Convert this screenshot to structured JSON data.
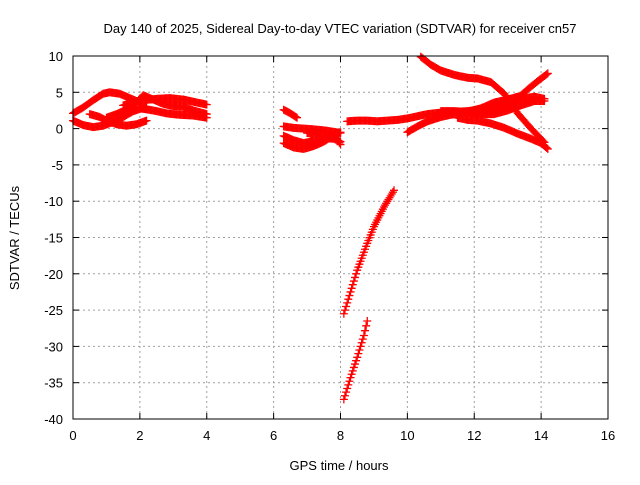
{
  "chart_data": {
    "type": "scatter",
    "title": "Day 140 of 2025, Sidereal Day-to-day VTEC variation (SDTVAR) for receiver cn57",
    "xlabel": "GPS time / hours",
    "ylabel": "SDTVAR / TECUs",
    "xlim": [
      0,
      16
    ],
    "ylim": [
      -40,
      10
    ],
    "xticks": [
      0,
      2,
      4,
      6,
      8,
      10,
      12,
      14,
      16
    ],
    "yticks": [
      -40,
      -35,
      -30,
      -25,
      -20,
      -15,
      -10,
      -5,
      0,
      5,
      10
    ],
    "grid": true,
    "marker": "plus",
    "color": "#ff0000",
    "series": [
      {
        "x": [
          0.0,
          0.3,
          0.6,
          0.9,
          1.1,
          1.4,
          1.7,
          2.0
        ],
        "y": [
          2.1,
          2.9,
          3.9,
          4.8,
          5.0,
          4.8,
          4.2,
          3.6
        ]
      },
      {
        "x": [
          0.0,
          0.3,
          0.6,
          0.9,
          1.2,
          1.5,
          1.8,
          2.2
        ],
        "y": [
          1.1,
          0.5,
          0.2,
          0.4,
          0.9,
          1.6,
          2.4,
          3.0
        ]
      },
      {
        "x": [
          0.5,
          0.8,
          1.0,
          1.3,
          1.6,
          1.9,
          2.2
        ],
        "y": [
          2.0,
          1.6,
          1.1,
          0.6,
          0.4,
          0.6,
          1.1
        ]
      },
      {
        "x": [
          1.0,
          1.3,
          1.6,
          1.9,
          2.1,
          2.4,
          2.7,
          3.0,
          3.3,
          3.6,
          4.0
        ],
        "y": [
          1.5,
          2.0,
          2.6,
          3.6,
          4.6,
          4.0,
          3.4,
          3.1,
          3.0,
          2.5,
          2.0
        ]
      },
      {
        "x": [
          1.5,
          1.8,
          2.1,
          2.5,
          2.9,
          3.3,
          3.7,
          4.0
        ],
        "y": [
          3.2,
          3.6,
          3.9,
          4.1,
          4.2,
          4.0,
          3.6,
          3.3
        ]
      },
      {
        "x": [
          2.0,
          2.4,
          2.8,
          3.2,
          3.6,
          4.0
        ],
        "y": [
          2.8,
          2.5,
          2.1,
          1.9,
          1.8,
          1.5
        ]
      },
      {
        "x": [
          6.3,
          6.5,
          6.7
        ],
        "y": [
          2.6,
          2.1,
          1.5
        ]
      },
      {
        "x": [
          6.3,
          6.6,
          6.9,
          7.2,
          7.6,
          8.0
        ],
        "y": [
          0.3,
          0.1,
          0.0,
          -0.1,
          -0.3,
          -0.6
        ]
      },
      {
        "x": [
          6.3,
          6.6,
          6.9,
          7.2,
          7.5,
          7.8,
          8.0
        ],
        "y": [
          -1.0,
          -1.6,
          -2.0,
          -1.7,
          -1.3,
          -1.4,
          -1.8
        ]
      },
      {
        "x": [
          6.3,
          6.6,
          6.9,
          7.2,
          7.5,
          7.8,
          8.0
        ],
        "y": [
          -2.0,
          -2.6,
          -2.8,
          -2.4,
          -1.8,
          -0.9,
          -0.5
        ]
      },
      {
        "x": [
          7.0,
          7.3,
          7.6,
          7.9,
          8.0
        ],
        "y": [
          -0.6,
          -0.8,
          -1.0,
          -1.5,
          -2.2
        ]
      },
      {
        "x": [
          8.2,
          8.5,
          8.8,
          9.1,
          9.4,
          9.7,
          10.0,
          10.3,
          10.6,
          11.0,
          11.4,
          11.8,
          12.2,
          12.6,
          13.0,
          13.4,
          13.8,
          14.1
        ],
        "y": [
          1.0,
          1.1,
          1.1,
          1.0,
          1.1,
          1.2,
          1.4,
          1.7,
          2.0,
          2.2,
          2.3,
          2.4,
          2.7,
          3.1,
          3.6,
          4.1,
          4.4,
          4.1
        ]
      },
      {
        "x": [
          8.1,
          8.3,
          8.5,
          8.8,
          9.0,
          9.3,
          9.6
        ],
        "y": [
          -25.5,
          -22.5,
          -19.5,
          -15.8,
          -13.5,
          -10.8,
          -8.5
        ]
      },
      {
        "x": [
          8.1,
          8.3,
          8.5,
          8.7,
          8.8
        ],
        "y": [
          -37.3,
          -34.3,
          -31.5,
          -28.5,
          -26.5
        ]
      },
      {
        "x": [
          10.4,
          10.7,
          11.0,
          11.4,
          11.8,
          12.1,
          12.5,
          12.9,
          13.3,
          13.7,
          14.1
        ],
        "y": [
          9.9,
          8.8,
          8.0,
          7.4,
          7.0,
          6.9,
          6.4,
          4.8,
          2.1,
          0.0,
          -1.9
        ]
      },
      {
        "x": [
          10.0,
          10.3,
          10.6,
          11.0,
          11.4,
          11.8,
          12.2,
          12.6,
          13.0,
          13.3
        ],
        "y": [
          -0.5,
          0.3,
          1.0,
          1.6,
          2.0,
          2.3,
          2.8,
          3.6,
          4.0,
          4.4
        ]
      },
      {
        "x": [
          11.0,
          11.4,
          11.8,
          12.2,
          12.6,
          13.0,
          13.4,
          13.7,
          14.0,
          14.2
        ],
        "y": [
          2.4,
          2.4,
          2.3,
          2.1,
          2.4,
          3.1,
          4.6,
          5.8,
          6.9,
          7.6
        ]
      },
      {
        "x": [
          11.0,
          11.4,
          11.8,
          12.2,
          12.6,
          13.0,
          13.4,
          13.8,
          14.1
        ],
        "y": [
          2.1,
          2.3,
          2.2,
          2.0,
          2.0,
          2.5,
          3.2,
          3.8,
          3.8
        ]
      },
      {
        "x": [
          11.5,
          11.8,
          12.1,
          12.5,
          12.9,
          13.3,
          13.7,
          14.0,
          14.2
        ],
        "y": [
          1.5,
          1.2,
          1.1,
          0.7,
          0.1,
          -0.7,
          -1.4,
          -2.0,
          -2.8
        ]
      }
    ]
  }
}
